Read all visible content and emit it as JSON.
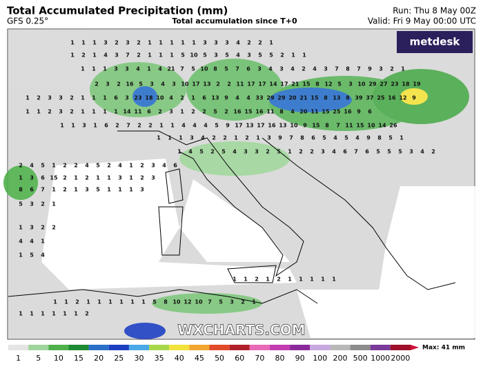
{
  "header": {
    "title": "Total Accumulated Precipitation (mm)",
    "model": "GFS 0.25°",
    "subtitle": "Total accumulation since T+0",
    "run": "Run: Thu 8 May 00Z",
    "valid": "Valid: Fri 9 May 00:00 UTC"
  },
  "logo": "metdesk",
  "watermark": "WXCHARTS.COM",
  "max_label": "Max: 41 mm",
  "map_values": [
    [
      1,
      1,
      1,
      3,
      2,
      3,
      2,
      1,
      1,
      1,
      1,
      1,
      3,
      3,
      3,
      4,
      2,
      2,
      1
    ],
    [
      1,
      2,
      1,
      4,
      3,
      7,
      2,
      1,
      1,
      1,
      5,
      10,
      5,
      3,
      5,
      4,
      3,
      5,
      5,
      2,
      1,
      1
    ],
    [
      1,
      1,
      1,
      3,
      3,
      4,
      1,
      4,
      21,
      7,
      5,
      10,
      8,
      5,
      7,
      6,
      3,
      4,
      3,
      4,
      2,
      4,
      3,
      7,
      8,
      7,
      9,
      3,
      2,
      1
    ],
    [
      2,
      3,
      2,
      16,
      5,
      3,
      4,
      3,
      10,
      17,
      13,
      2,
      2,
      11,
      17,
      17,
      14,
      17,
      21,
      15,
      8,
      12,
      5,
      3,
      10,
      29,
      27,
      23,
      18,
      19
    ],
    [
      1,
      2,
      3,
      3,
      2,
      1,
      1,
      1,
      6,
      3,
      23,
      18,
      10,
      4,
      2,
      1,
      6,
      13,
      9,
      4,
      4,
      33,
      29,
      29,
      20,
      21,
      15,
      8,
      13,
      8,
      39,
      37,
      25,
      16,
      12,
      9
    ],
    [
      1,
      1,
      2,
      3,
      2,
      1,
      1,
      1,
      1,
      14,
      11,
      6,
      2,
      3,
      1,
      2,
      2,
      5,
      2,
      16,
      15,
      16,
      11,
      8,
      4,
      20,
      11,
      15,
      25,
      16,
      9,
      6
    ],
    [
      1,
      1,
      3,
      1,
      6,
      2,
      7,
      2,
      2,
      1,
      1,
      4,
      4,
      4,
      5,
      9,
      17,
      13,
      17,
      16,
      13,
      10,
      9,
      15,
      8,
      7,
      11,
      15,
      10,
      14,
      26
    ],
    [
      1,
      1,
      1,
      3,
      4,
      2,
      2,
      1,
      2,
      1,
      3,
      9,
      7,
      8,
      6,
      5,
      4,
      5,
      4,
      9,
      8,
      5,
      1
    ],
    [
      1,
      4,
      5,
      2,
      5,
      4,
      3,
      3,
      2,
      5,
      1,
      2,
      2,
      3,
      4,
      6,
      7,
      6,
      5,
      5,
      5,
      3,
      4,
      2
    ],
    [
      2,
      4,
      5,
      1,
      2,
      2,
      4,
      5,
      2,
      4,
      1,
      2,
      3,
      4,
      6
    ],
    [
      1,
      3,
      6,
      15,
      2,
      1,
      2,
      1,
      1,
      3,
      1,
      2,
      3
    ],
    [
      8,
      6,
      7,
      1,
      2,
      1,
      3,
      5,
      1,
      1,
      1,
      3
    ],
    [
      5,
      3,
      2,
      1
    ],
    [
      1,
      3,
      2,
      2
    ],
    [
      4,
      4,
      1
    ],
    [
      1,
      5,
      4
    ],
    [
      1,
      1,
      2,
      1,
      2,
      1,
      1,
      1,
      1,
      1
    ],
    [
      1,
      1,
      2,
      1,
      1,
      1,
      1,
      1,
      1,
      5,
      8,
      10,
      12,
      10,
      7,
      5,
      3,
      2,
      1
    ],
    [
      1,
      1,
      1,
      1,
      1,
      1,
      2
    ]
  ],
  "colorbar": {
    "ticks": [
      1,
      5,
      10,
      15,
      20,
      25,
      30,
      35,
      40,
      45,
      50,
      60,
      70,
      80,
      90,
      100,
      200,
      500,
      1000,
      2000
    ],
    "colors": [
      "#e4e4e4",
      "#9fd49b",
      "#4fb04b",
      "#1f8a34",
      "#2a70c8",
      "#1c3fc0",
      "#4aa8e6",
      "#a8d84a",
      "#f2e23a",
      "#f0a630",
      "#e04a2a",
      "#b0202a",
      "#e86ab8",
      "#c23cb0",
      "#8a2a9a",
      "#c8a8e0",
      "#b8b8b8",
      "#8c8c8c",
      "#7a3a9a",
      "#a0102a"
    ]
  }
}
